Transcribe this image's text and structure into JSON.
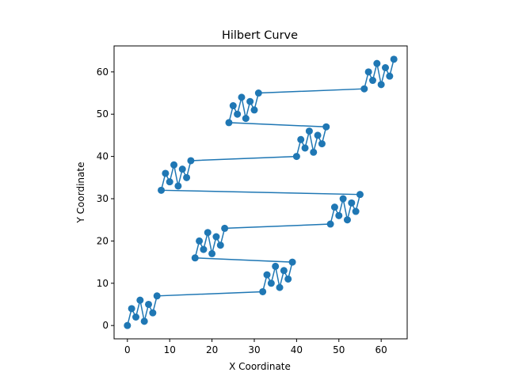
{
  "chart_data": {
    "type": "line",
    "title": "Hilbert Curve",
    "xlabel": "X Coordinate",
    "ylabel": "Y Coordinate",
    "xlim": [
      -3.15,
      66.15
    ],
    "ylim": [
      -3.15,
      66.15
    ],
    "xticks": [
      0,
      10,
      20,
      30,
      40,
      50,
      60
    ],
    "yticks": [
      0,
      10,
      20,
      30,
      40,
      50,
      60
    ],
    "grid": false,
    "series_color": "#1f77b4",
    "series": [
      {
        "marker": "circle",
        "points": [
          [
            0,
            0
          ],
          [
            1,
            4
          ],
          [
            2,
            2
          ],
          [
            3,
            6
          ],
          [
            4,
            1
          ],
          [
            5,
            5
          ],
          [
            6,
            3
          ],
          [
            7,
            7
          ],
          [
            32,
            8
          ],
          [
            33,
            12
          ],
          [
            34,
            10
          ],
          [
            35,
            14
          ],
          [
            36,
            9
          ],
          [
            37,
            13
          ],
          [
            38,
            11
          ],
          [
            39,
            15
          ],
          [
            16,
            16
          ],
          [
            17,
            20
          ],
          [
            18,
            18
          ],
          [
            19,
            22
          ],
          [
            20,
            17
          ],
          [
            21,
            21
          ],
          [
            22,
            19
          ],
          [
            23,
            23
          ],
          [
            48,
            24
          ],
          [
            49,
            28
          ],
          [
            50,
            26
          ],
          [
            51,
            30
          ],
          [
            52,
            25
          ],
          [
            53,
            29
          ],
          [
            54,
            27
          ],
          [
            55,
            31
          ],
          [
            8,
            32
          ],
          [
            9,
            36
          ],
          [
            10,
            34
          ],
          [
            11,
            38
          ],
          [
            12,
            33
          ],
          [
            13,
            37
          ],
          [
            14,
            35
          ],
          [
            15,
            39
          ],
          [
            40,
            40
          ],
          [
            41,
            44
          ],
          [
            42,
            42
          ],
          [
            43,
            46
          ],
          [
            44,
            41
          ],
          [
            45,
            45
          ],
          [
            46,
            43
          ],
          [
            47,
            47
          ],
          [
            24,
            48
          ],
          [
            25,
            52
          ],
          [
            26,
            50
          ],
          [
            27,
            54
          ],
          [
            28,
            49
          ],
          [
            29,
            53
          ],
          [
            30,
            51
          ],
          [
            31,
            55
          ],
          [
            56,
            56
          ],
          [
            57,
            60
          ],
          [
            58,
            58
          ],
          [
            59,
            62
          ],
          [
            60,
            57
          ],
          [
            61,
            61
          ],
          [
            62,
            59
          ],
          [
            63,
            63
          ]
        ]
      }
    ]
  }
}
